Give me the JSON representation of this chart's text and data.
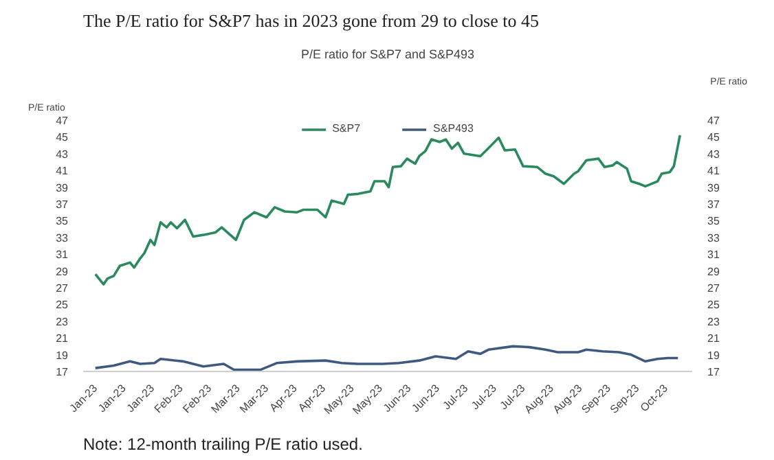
{
  "chart_data": {
    "type": "line",
    "title": "The P/E ratio for S&P7 has in 2023 gone from 29 to close to 45",
    "subtitle": "P/E ratio for S&P7 and S&P493",
    "ylabel": "P/E ratio",
    "y2label": "P/E ratio",
    "annotations": [
      "Note: 12-month trailing P/E ratio used."
    ],
    "xlim": [
      "2022-12-27",
      "2023-10-22"
    ],
    "xticks": [
      {
        "value": "2023-01-02",
        "label": "Jan-23"
      },
      {
        "value": "2023-01-16",
        "label": "Jan-23"
      },
      {
        "value": "2023-01-30",
        "label": "Jan-23"
      },
      {
        "value": "2023-02-13",
        "label": "Feb-23"
      },
      {
        "value": "2023-02-27",
        "label": "Feb-23"
      },
      {
        "value": "2023-03-13",
        "label": "Mar-23"
      },
      {
        "value": "2023-03-27",
        "label": "Mar-23"
      },
      {
        "value": "2023-04-10",
        "label": "Apr-23"
      },
      {
        "value": "2023-04-24",
        "label": "Apr-23"
      },
      {
        "value": "2023-05-08",
        "label": "May-23"
      },
      {
        "value": "2023-05-22",
        "label": "May-23"
      },
      {
        "value": "2023-06-05",
        "label": "Jun-23"
      },
      {
        "value": "2023-06-19",
        "label": "Jun-23"
      },
      {
        "value": "2023-07-03",
        "label": "Jul-23"
      },
      {
        "value": "2023-07-17",
        "label": "Jul-23"
      },
      {
        "value": "2023-07-31",
        "label": "Jul-23"
      },
      {
        "value": "2023-08-14",
        "label": "Aug-23"
      },
      {
        "value": "2023-08-28",
        "label": "Aug-23"
      },
      {
        "value": "2023-09-11",
        "label": "Sep-23"
      },
      {
        "value": "2023-09-25",
        "label": "Sep-23"
      },
      {
        "value": "2023-10-09",
        "label": "Oct-23"
      }
    ],
    "ylim": [
      17,
      47
    ],
    "yticks": [
      17,
      19,
      21,
      23,
      25,
      27,
      29,
      31,
      33,
      35,
      37,
      39,
      41,
      43,
      45,
      47
    ],
    "y2lim": [
      17,
      47
    ],
    "y2ticks": [
      17,
      19,
      21,
      23,
      25,
      27,
      29,
      31,
      33,
      35,
      37,
      39,
      41,
      43,
      45,
      47
    ],
    "grid": false,
    "legend": "top",
    "marker": "none",
    "line_style": "solid",
    "series": [
      {
        "name": "S&P7",
        "color": "#2a8a5e",
        "x": [
          "2023-01-02",
          "2023-01-06",
          "2023-01-08",
          "2023-01-11",
          "2023-01-14",
          "2023-01-19",
          "2023-01-21",
          "2023-01-24",
          "2023-01-26",
          "2023-01-29",
          "2023-01-31",
          "2023-02-03",
          "2023-02-06",
          "2023-02-08",
          "2023-02-11",
          "2023-02-15",
          "2023-02-19",
          "2023-02-24",
          "2023-03-02",
          "2023-03-05",
          "2023-03-12",
          "2023-03-16",
          "2023-03-21",
          "2023-03-27",
          "2023-03-31",
          "2023-04-05",
          "2023-04-11",
          "2023-04-14",
          "2023-04-21",
          "2023-04-25",
          "2023-04-28",
          "2023-05-04",
          "2023-05-06",
          "2023-05-11",
          "2023-05-17",
          "2023-05-19",
          "2023-05-24",
          "2023-05-26",
          "2023-05-28",
          "2023-06-01",
          "2023-06-04",
          "2023-06-08",
          "2023-06-10",
          "2023-06-13",
          "2023-06-16",
          "2023-06-20",
          "2023-06-23",
          "2023-06-26",
          "2023-06-29",
          "2023-07-02",
          "2023-07-10",
          "2023-07-15",
          "2023-07-19",
          "2023-07-22",
          "2023-07-27",
          "2023-07-31",
          "2023-08-07",
          "2023-08-11",
          "2023-08-15",
          "2023-08-20",
          "2023-08-25",
          "2023-08-27",
          "2023-08-31",
          "2023-09-06",
          "2023-09-09",
          "2023-09-13",
          "2023-09-15",
          "2023-09-20",
          "2023-09-22",
          "2023-09-26",
          "2023-09-29",
          "2023-10-05",
          "2023-10-07",
          "2023-10-11",
          "2023-10-13",
          "2023-10-16"
        ],
        "values": [
          28.6,
          27.4,
          28.1,
          28.4,
          29.6,
          30.0,
          29.4,
          30.5,
          31.1,
          32.7,
          32.1,
          34.8,
          34.2,
          34.8,
          34.1,
          35.1,
          33.1,
          33.3,
          33.6,
          34.2,
          32.7,
          35.1,
          36.0,
          35.4,
          36.6,
          36.1,
          36.0,
          36.3,
          36.3,
          35.4,
          37.4,
          37.0,
          38.1,
          38.2,
          38.5,
          39.7,
          39.7,
          39.0,
          41.4,
          41.5,
          42.4,
          41.8,
          42.7,
          43.3,
          44.7,
          44.4,
          44.7,
          43.6,
          44.3,
          43.0,
          42.7,
          43.9,
          44.9,
          43.4,
          43.5,
          41.5,
          41.4,
          40.6,
          40.3,
          39.4,
          40.6,
          40.9,
          42.2,
          42.4,
          41.4,
          41.6,
          42.0,
          41.2,
          39.7,
          39.4,
          39.1,
          39.7,
          40.6,
          40.8,
          41.5,
          45.2
        ]
      },
      {
        "name": "S&P493",
        "color": "#3e5a7e",
        "x": [
          "2023-01-02",
          "2023-01-11",
          "2023-01-19",
          "2023-01-24",
          "2023-01-31",
          "2023-02-03",
          "2023-02-14",
          "2023-02-24",
          "2023-03-06",
          "2023-03-11",
          "2023-03-24",
          "2023-04-01",
          "2023-04-11",
          "2023-04-25",
          "2023-05-03",
          "2023-05-11",
          "2023-05-23",
          "2023-05-31",
          "2023-06-10",
          "2023-06-18",
          "2023-06-28",
          "2023-07-04",
          "2023-07-10",
          "2023-07-14",
          "2023-07-26",
          "2023-08-03",
          "2023-08-11",
          "2023-08-17",
          "2023-08-27",
          "2023-08-31",
          "2023-09-08",
          "2023-09-16",
          "2023-09-22",
          "2023-09-29",
          "2023-10-05",
          "2023-10-10",
          "2023-10-15"
        ],
        "values": [
          17.4,
          17.7,
          18.2,
          17.9,
          18.0,
          18.5,
          18.2,
          17.6,
          17.9,
          17.2,
          17.2,
          18.0,
          18.2,
          18.3,
          18.0,
          17.9,
          17.9,
          18.0,
          18.3,
          18.8,
          18.5,
          19.4,
          19.1,
          19.6,
          20.0,
          19.9,
          19.6,
          19.3,
          19.3,
          19.6,
          19.4,
          19.3,
          19.0,
          18.2,
          18.5,
          18.6,
          18.6
        ]
      }
    ]
  }
}
